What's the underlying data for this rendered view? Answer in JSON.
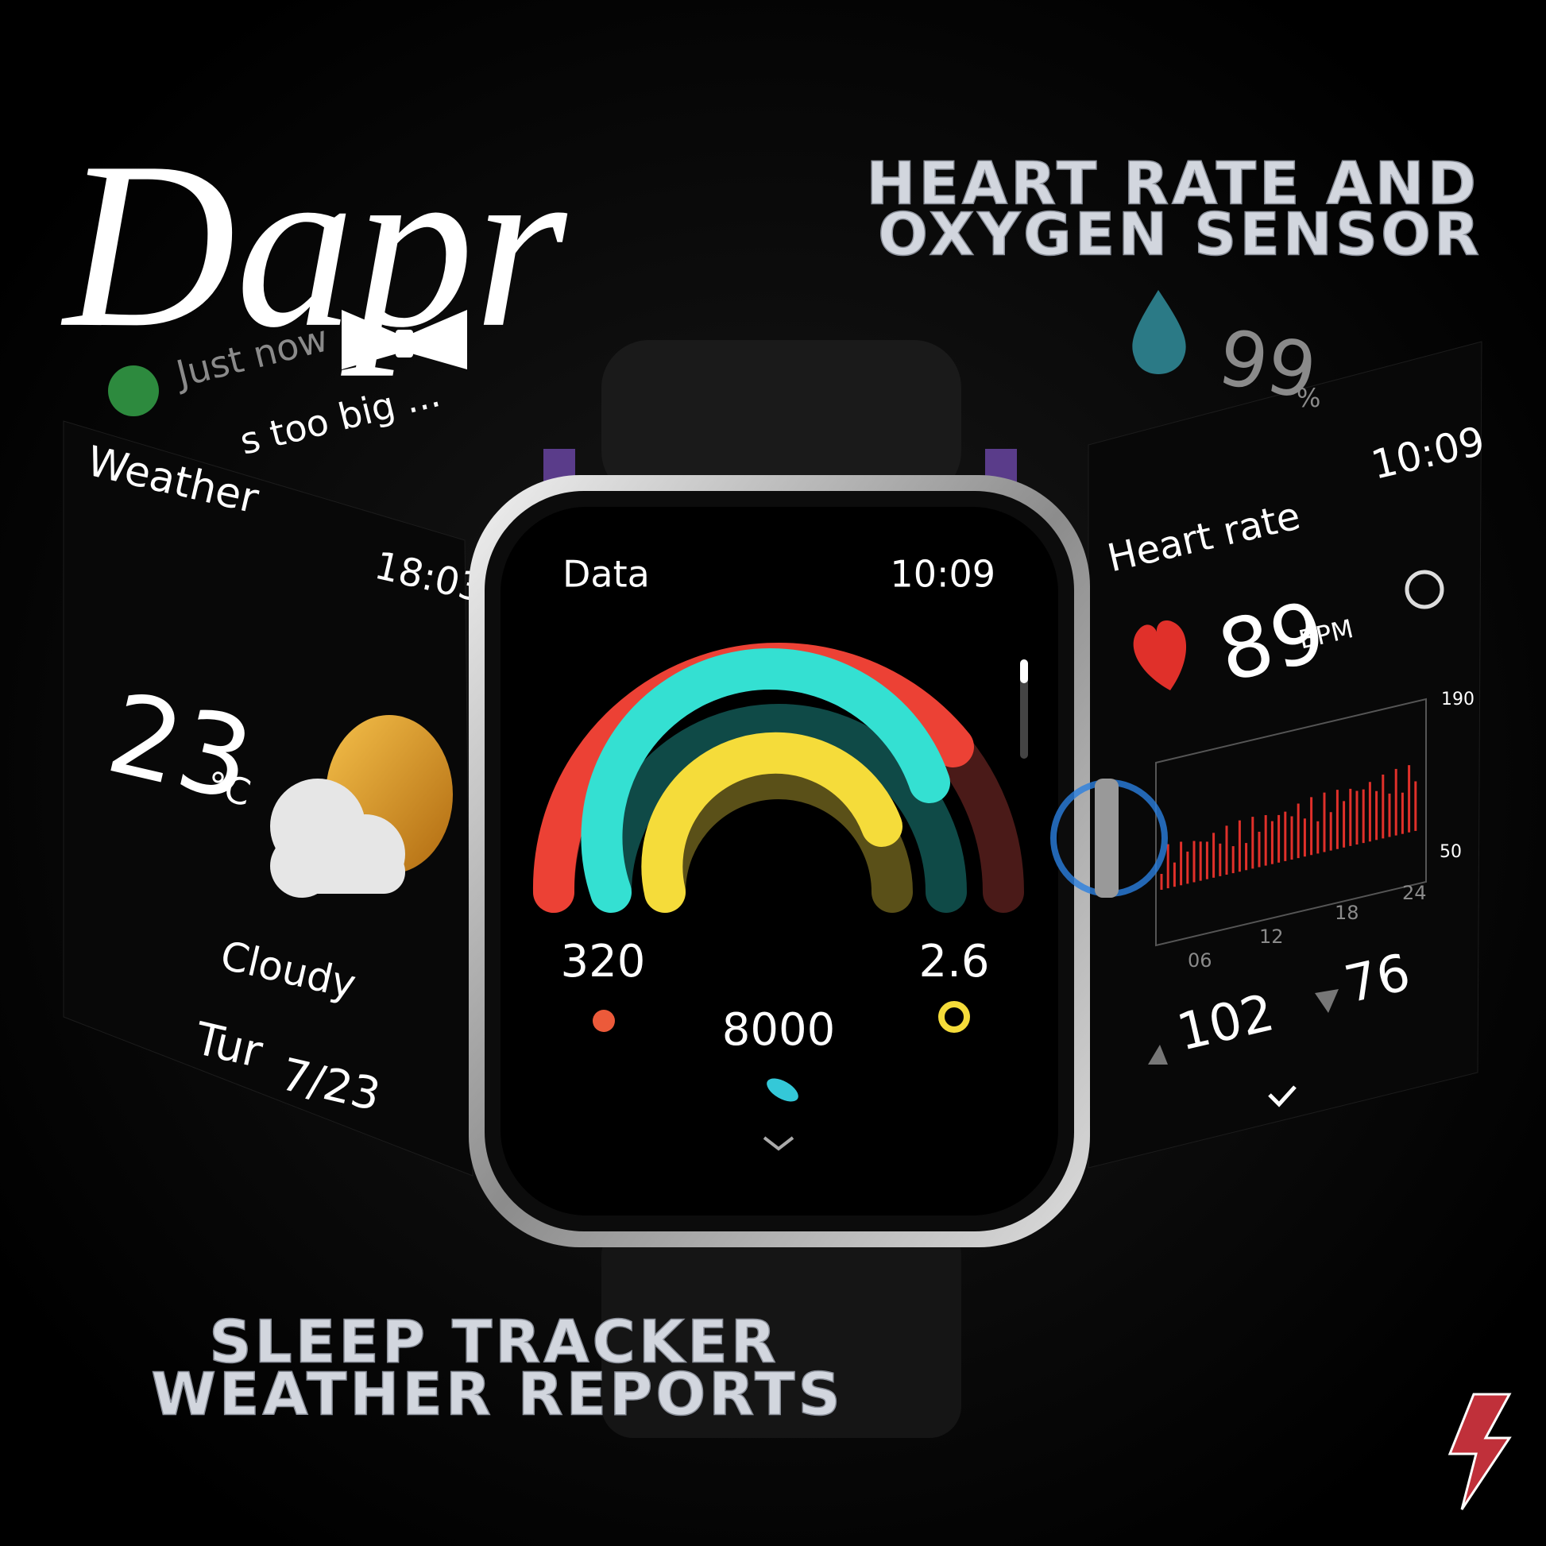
{
  "brand": "Dapr",
  "headline_top": [
    "HEART RATE AND",
    "OXYGEN SENSOR"
  ],
  "headline_bottom": [
    "SLEEP TRACKER",
    "WEATHER REPORTS"
  ],
  "notification": {
    "time": "Just now",
    "message": "s too big ..."
  },
  "weather": {
    "title": "Weather",
    "time": "18:03",
    "temperature": "23",
    "unit": "°C",
    "condition": "Cloudy",
    "day": "Tur",
    "date": "7/23"
  },
  "main": {
    "title": "Data",
    "time": "10:09",
    "calories": "320",
    "distance": "2.6",
    "steps": "8000"
  },
  "heart": {
    "title": "Heart rate",
    "time": "10:09",
    "bpm": "89",
    "unit": "BPM",
    "max_label": "190",
    "min_label": "50",
    "x_labels": [
      "06",
      "12",
      "18",
      "24"
    ],
    "high": "102",
    "low": "76"
  },
  "oxygen": {
    "value": "99",
    "unit": "%"
  }
}
